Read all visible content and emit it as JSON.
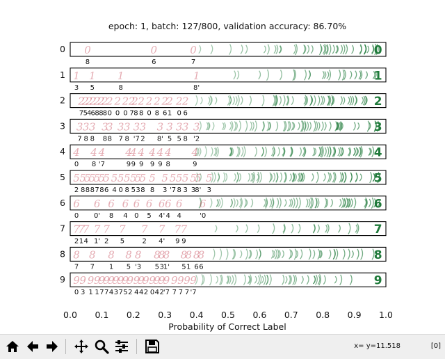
{
  "chart_data": {
    "type": "scatter",
    "title": "epoch: 1, batch: 127/800, validation accuracy: 86.70%",
    "xlabel": "Probability of Correct Label",
    "ylabel": "",
    "xlim": [
      0.0,
      1.0
    ],
    "x_ticks": [
      "0.0",
      "0.1",
      "0.2",
      "0.3",
      "0.4",
      "0.5",
      "0.6",
      "0.7",
      "0.8",
      "0.9",
      "1.0"
    ],
    "legend": "none",
    "rows": [
      {
        "label": "0",
        "wrong_examples": [
          {
            "x": 0.055,
            "pred": "8"
          },
          {
            "x": 0.265,
            "pred": "6"
          },
          {
            "x": 0.39,
            "pred": "7"
          }
        ],
        "correct_density": [
          {
            "from": 0.4,
            "to": 0.5,
            "count": 2
          },
          {
            "from": 0.5,
            "to": 0.6,
            "count": 3
          },
          {
            "from": 0.6,
            "to": 0.7,
            "count": 6
          },
          {
            "from": 0.7,
            "to": 0.8,
            "count": 8
          },
          {
            "from": 0.8,
            "to": 0.9,
            "count": 12
          },
          {
            "from": 0.9,
            "to": 0.98,
            "count": 10
          }
        ]
      },
      {
        "label": "1",
        "wrong_examples": [
          {
            "x": 0.02,
            "pred": "3"
          },
          {
            "x": 0.07,
            "pred": "5"
          },
          {
            "x": 0.16,
            "pred": "8"
          },
          {
            "x": 0.4,
            "pred": "8'"
          }
        ],
        "correct_density": [
          {
            "from": 0.5,
            "to": 0.6,
            "count": 2
          },
          {
            "from": 0.6,
            "to": 0.7,
            "count": 3
          },
          {
            "from": 0.7,
            "to": 0.8,
            "count": 5
          },
          {
            "from": 0.8,
            "to": 0.9,
            "count": 8
          },
          {
            "from": 0.9,
            "to": 0.98,
            "count": 6
          }
        ]
      },
      {
        "label": "2",
        "wrong_examples": [
          {
            "x": 0.035,
            "pred": "7"
          },
          {
            "x": 0.048,
            "pred": "5"
          },
          {
            "x": 0.06,
            "pred": "4"
          },
          {
            "x": 0.072,
            "pred": "6"
          },
          {
            "x": 0.085,
            "pred": "8"
          },
          {
            "x": 0.098,
            "pred": "8"
          },
          {
            "x": 0.11,
            "pred": "8"
          },
          {
            "x": 0.125,
            "pred": "0"
          },
          {
            "x": 0.15,
            "pred": "0"
          },
          {
            "x": 0.175,
            "pred": "0"
          },
          {
            "x": 0.195,
            "pred": "7"
          },
          {
            "x": 0.205,
            "pred": "'8"
          },
          {
            "x": 0.225,
            "pred": "8"
          },
          {
            "x": 0.25,
            "pred": "0"
          },
          {
            "x": 0.275,
            "pred": "8"
          },
          {
            "x": 0.3,
            "pred": "6"
          },
          {
            "x": 0.315,
            "pred": "1"
          },
          {
            "x": 0.345,
            "pred": "0"
          },
          {
            "x": 0.365,
            "pred": "6"
          }
        ],
        "correct_density": [
          {
            "from": 0.4,
            "to": 0.5,
            "count": 6
          },
          {
            "from": 0.5,
            "to": 0.6,
            "count": 8
          },
          {
            "from": 0.6,
            "to": 0.7,
            "count": 10
          },
          {
            "from": 0.7,
            "to": 0.8,
            "count": 10
          },
          {
            "from": 0.8,
            "to": 0.9,
            "count": 12
          },
          {
            "from": 0.9,
            "to": 0.98,
            "count": 6
          }
        ]
      },
      {
        "label": "3",
        "wrong_examples": [
          {
            "x": 0.03,
            "pred": "7"
          },
          {
            "x": 0.05,
            "pred": "8"
          },
          {
            "x": 0.07,
            "pred": "8"
          },
          {
            "x": 0.11,
            "pred": "8"
          },
          {
            "x": 0.125,
            "pred": "8"
          },
          {
            "x": 0.16,
            "pred": "7"
          },
          {
            "x": 0.18,
            "pred": "8"
          },
          {
            "x": 0.21,
            "pred": "'7"
          },
          {
            "x": 0.23,
            "pred": "2"
          },
          {
            "x": 0.285,
            "pred": "8'"
          },
          {
            "x": 0.315,
            "pred": "5"
          },
          {
            "x": 0.345,
            "pred": "5"
          },
          {
            "x": 0.365,
            "pred": "8"
          },
          {
            "x": 0.4,
            "pred": "'2"
          }
        ],
        "correct_density": [
          {
            "from": 0.4,
            "to": 0.5,
            "count": 7
          },
          {
            "from": 0.5,
            "to": 0.6,
            "count": 9
          },
          {
            "from": 0.6,
            "to": 0.7,
            "count": 10
          },
          {
            "from": 0.7,
            "to": 0.8,
            "count": 12
          },
          {
            "from": 0.8,
            "to": 0.9,
            "count": 12
          },
          {
            "from": 0.9,
            "to": 0.98,
            "count": 7
          }
        ]
      },
      {
        "label": "4",
        "wrong_examples": [
          {
            "x": 0.02,
            "pred": "0"
          },
          {
            "x": 0.075,
            "pred": "8"
          },
          {
            "x": 0.1,
            "pred": "'7"
          },
          {
            "x": 0.185,
            "pred": "9"
          },
          {
            "x": 0.2,
            "pred": "9"
          },
          {
            "x": 0.225,
            "pred": "9"
          },
          {
            "x": 0.26,
            "pred": "9"
          },
          {
            "x": 0.285,
            "pred": "9"
          },
          {
            "x": 0.31,
            "pred": "8"
          },
          {
            "x": 0.395,
            "pred": "9"
          }
        ],
        "correct_density": [
          {
            "from": 0.4,
            "to": 0.5,
            "count": 8
          },
          {
            "from": 0.5,
            "to": 0.6,
            "count": 10
          },
          {
            "from": 0.6,
            "to": 0.7,
            "count": 10
          },
          {
            "from": 0.7,
            "to": 0.8,
            "count": 12
          },
          {
            "from": 0.8,
            "to": 0.9,
            "count": 14
          },
          {
            "from": 0.9,
            "to": 0.98,
            "count": 10
          }
        ]
      },
      {
        "label": "5",
        "wrong_examples": [
          {
            "x": 0.02,
            "pred": "2"
          },
          {
            "x": 0.04,
            "pred": "8"
          },
          {
            "x": 0.055,
            "pred": "8"
          },
          {
            "x": 0.07,
            "pred": "8"
          },
          {
            "x": 0.085,
            "pred": "7"
          },
          {
            "x": 0.1,
            "pred": "8"
          },
          {
            "x": 0.115,
            "pred": "6"
          },
          {
            "x": 0.14,
            "pred": "4"
          },
          {
            "x": 0.16,
            "pred": "0"
          },
          {
            "x": 0.18,
            "pred": "8"
          },
          {
            "x": 0.2,
            "pred": "5"
          },
          {
            "x": 0.215,
            "pred": "3"
          },
          {
            "x": 0.23,
            "pred": "8"
          },
          {
            "x": 0.26,
            "pred": "8"
          },
          {
            "x": 0.3,
            "pred": "3"
          },
          {
            "x": 0.325,
            "pred": "'7"
          },
          {
            "x": 0.345,
            "pred": "8"
          },
          {
            "x": 0.365,
            "pred": "3"
          },
          {
            "x": 0.39,
            "pred": "3"
          },
          {
            "x": 0.405,
            "pred": "8'"
          },
          {
            "x": 0.44,
            "pred": "3"
          }
        ],
        "correct_density": [
          {
            "from": 0.4,
            "to": 0.5,
            "count": 8
          },
          {
            "from": 0.5,
            "to": 0.6,
            "count": 10
          },
          {
            "from": 0.6,
            "to": 0.7,
            "count": 10
          },
          {
            "from": 0.7,
            "to": 0.8,
            "count": 12
          },
          {
            "from": 0.8,
            "to": 0.9,
            "count": 12
          },
          {
            "from": 0.9,
            "to": 0.98,
            "count": 8
          }
        ]
      },
      {
        "label": "6",
        "wrong_examples": [
          {
            "x": 0.02,
            "pred": "0"
          },
          {
            "x": 0.085,
            "pred": "0'"
          },
          {
            "x": 0.13,
            "pred": "8"
          },
          {
            "x": 0.175,
            "pred": "4"
          },
          {
            "x": 0.21,
            "pred": "0"
          },
          {
            "x": 0.25,
            "pred": "5"
          },
          {
            "x": 0.29,
            "pred": "4'"
          },
          {
            "x": 0.31,
            "pred": "4"
          },
          {
            "x": 0.345,
            "pred": "4"
          },
          {
            "x": 0.42,
            "pred": "'0"
          }
        ],
        "correct_density": [
          {
            "from": 0.4,
            "to": 0.5,
            "count": 7
          },
          {
            "from": 0.5,
            "to": 0.6,
            "count": 9
          },
          {
            "from": 0.6,
            "to": 0.7,
            "count": 10
          },
          {
            "from": 0.7,
            "to": 0.8,
            "count": 11
          },
          {
            "from": 0.8,
            "to": 0.9,
            "count": 12
          },
          {
            "from": 0.9,
            "to": 0.98,
            "count": 8
          }
        ]
      },
      {
        "label": "7",
        "wrong_examples": [
          {
            "x": 0.02,
            "pred": "2"
          },
          {
            "x": 0.035,
            "pred": "1"
          },
          {
            "x": 0.05,
            "pred": "4"
          },
          {
            "x": 0.085,
            "pred": "1'"
          },
          {
            "x": 0.115,
            "pred": "2"
          },
          {
            "x": 0.165,
            "pred": "5"
          },
          {
            "x": 0.235,
            "pred": "2"
          },
          {
            "x": 0.29,
            "pred": "4'"
          },
          {
            "x": 0.34,
            "pred": "9"
          },
          {
            "x": 0.36,
            "pred": "9"
          }
        ],
        "correct_density": [
          {
            "from": 0.45,
            "to": 0.55,
            "count": 2
          },
          {
            "from": 0.55,
            "to": 0.65,
            "count": 3
          },
          {
            "from": 0.65,
            "to": 0.75,
            "count": 4
          },
          {
            "from": 0.75,
            "to": 0.85,
            "count": 5
          },
          {
            "from": 0.85,
            "to": 0.98,
            "count": 4
          }
        ]
      },
      {
        "label": "8",
        "wrong_examples": [
          {
            "x": 0.02,
            "pred": "7"
          },
          {
            "x": 0.07,
            "pred": "7"
          },
          {
            "x": 0.13,
            "pred": "1"
          },
          {
            "x": 0.185,
            "pred": "5"
          },
          {
            "x": 0.215,
            "pred": "'3"
          },
          {
            "x": 0.275,
            "pred": "5"
          },
          {
            "x": 0.29,
            "pred": "3"
          },
          {
            "x": 0.305,
            "pred": "1'"
          },
          {
            "x": 0.36,
            "pred": "5"
          },
          {
            "x": 0.375,
            "pred": "1"
          },
          {
            "x": 0.4,
            "pred": "6"
          },
          {
            "x": 0.415,
            "pred": "6"
          }
        ],
        "correct_density": [
          {
            "from": 0.45,
            "to": 0.55,
            "count": 6
          },
          {
            "from": 0.55,
            "to": 0.65,
            "count": 8
          },
          {
            "from": 0.65,
            "to": 0.75,
            "count": 9
          },
          {
            "from": 0.75,
            "to": 0.85,
            "count": 9
          },
          {
            "from": 0.85,
            "to": 0.98,
            "count": 6
          }
        ]
      },
      {
        "label": "9",
        "wrong_examples": [
          {
            "x": 0.02,
            "pred": "0"
          },
          {
            "x": 0.04,
            "pred": "3"
          },
          {
            "x": 0.065,
            "pred": "1"
          },
          {
            "x": 0.085,
            "pred": "1"
          },
          {
            "x": 0.1,
            "pred": "7"
          },
          {
            "x": 0.115,
            "pred": "7"
          },
          {
            "x": 0.13,
            "pred": "4"
          },
          {
            "x": 0.145,
            "pred": "3"
          },
          {
            "x": 0.16,
            "pred": "7"
          },
          {
            "x": 0.175,
            "pred": "5"
          },
          {
            "x": 0.19,
            "pred": "2"
          },
          {
            "x": 0.21,
            "pred": "4"
          },
          {
            "x": 0.225,
            "pred": "4"
          },
          {
            "x": 0.24,
            "pred": "2"
          },
          {
            "x": 0.26,
            "pred": "0"
          },
          {
            "x": 0.275,
            "pred": "4"
          },
          {
            "x": 0.29,
            "pred": "2"
          },
          {
            "x": 0.305,
            "pred": "'7"
          },
          {
            "x": 0.33,
            "pred": "7"
          },
          {
            "x": 0.35,
            "pred": "7"
          },
          {
            "x": 0.37,
            "pred": "7"
          },
          {
            "x": 0.39,
            "pred": "'7"
          }
        ],
        "correct_density": [
          {
            "from": 0.4,
            "to": 0.5,
            "count": 8
          },
          {
            "from": 0.5,
            "to": 0.6,
            "count": 10
          },
          {
            "from": 0.6,
            "to": 0.7,
            "count": 10
          },
          {
            "from": 0.7,
            "to": 0.8,
            "count": 9
          },
          {
            "from": 0.8,
            "to": 0.9,
            "count": 4
          }
        ]
      }
    ]
  },
  "toolbar": {
    "buttons": [
      {
        "name": "home-button",
        "icon": "home-icon"
      },
      {
        "name": "back-button",
        "icon": "arrow-left-icon"
      },
      {
        "name": "forward-button",
        "icon": "arrow-right-icon"
      },
      {
        "name": "pan-button",
        "icon": "move-icon"
      },
      {
        "name": "zoom-button",
        "icon": "magnifier-icon"
      },
      {
        "name": "configure-subplots-button",
        "icon": "sliders-icon"
      },
      {
        "name": "save-button",
        "icon": "floppy-disk-icon"
      }
    ],
    "coordinates": "x= y=11.518",
    "zoom_indicator": "[0]"
  },
  "colors": {
    "wrong": "#c0394b",
    "correct": "#1f7a3a",
    "axis": "#000000",
    "toolbar_bg": "#efefef"
  }
}
